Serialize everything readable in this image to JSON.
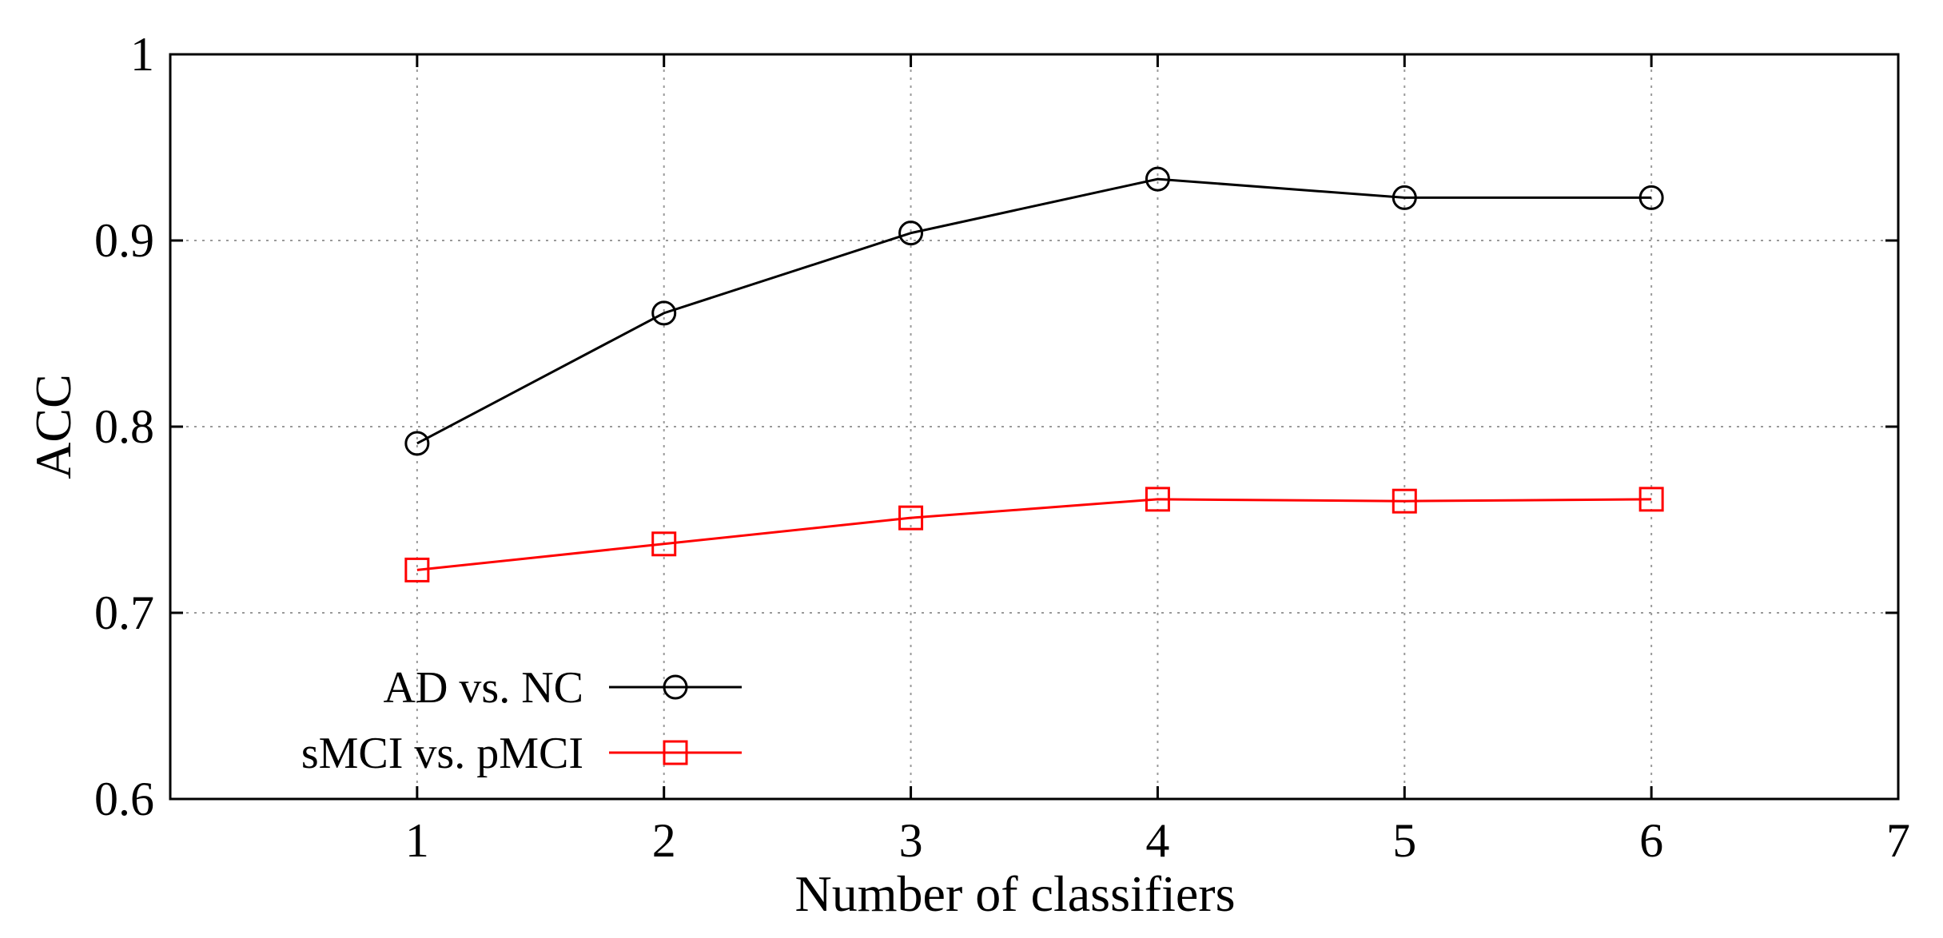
{
  "chart_data": {
    "type": "line",
    "xlabel": "Number of classifiers",
    "ylabel": "ACC",
    "xlim": [
      0,
      7
    ],
    "ylim": [
      0.6,
      1.0
    ],
    "xticks": [
      "1",
      "2",
      "3",
      "4",
      "5",
      "6",
      "7"
    ],
    "yticks": [
      "0.6",
      "0.7",
      "0.8",
      "0.9",
      "1"
    ],
    "grid": true,
    "legend_position": "bottom-left",
    "x": [
      1,
      2,
      3,
      4,
      5,
      6
    ],
    "series": [
      {
        "name": "AD vs. NC",
        "values": [
          0.791,
          0.861,
          0.904,
          0.933,
          0.923,
          0.923
        ],
        "color": "#000000",
        "marker": "circle"
      },
      {
        "name": "sMCI vs. pMCI",
        "values": [
          0.723,
          0.737,
          0.751,
          0.761,
          0.76,
          0.761
        ],
        "color": "#ff0000",
        "marker": "square"
      }
    ]
  }
}
